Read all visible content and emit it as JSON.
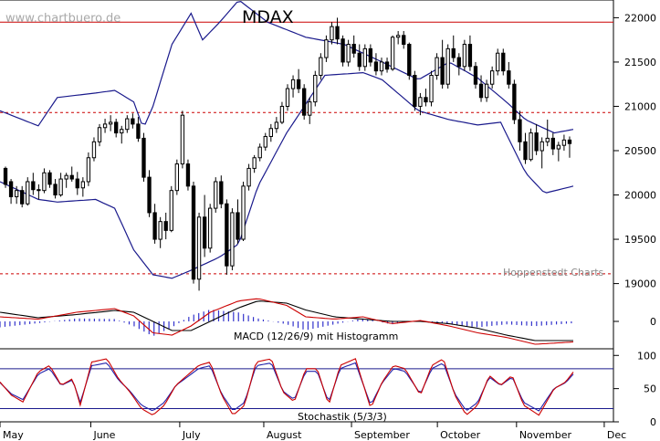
{
  "chart_data": {
    "type": "candlestick",
    "title": "MDAX",
    "watermark": "www.chartbuero.de",
    "source": "Hoppenstedt Charts",
    "price_panel": {
      "ylim": [
        18800,
        22200
      ],
      "yticks": [
        19000,
        19500,
        20000,
        20500,
        21000,
        21500,
        22000
      ],
      "reference_lines": [
        {
          "value": 21950,
          "style": "solid",
          "color": "#cc0000"
        },
        {
          "value": 20930,
          "style": "dashed",
          "color": "#cc0000"
        },
        {
          "value": 19110,
          "style": "dashed",
          "color": "#cc0000"
        }
      ],
      "bollinger_upper_anchors": [
        [
          0,
          20950
        ],
        [
          20,
          20780
        ],
        [
          30,
          21100
        ],
        [
          50,
          21150
        ],
        [
          60,
          21180
        ],
        [
          70,
          21050
        ],
        [
          75,
          20750
        ],
        [
          80,
          21000
        ],
        [
          90,
          21700
        ],
        [
          100,
          22050
        ],
        [
          106,
          21750
        ],
        [
          115,
          21950
        ],
        [
          125,
          22200
        ],
        [
          140,
          21950
        ],
        [
          160,
          21780
        ],
        [
          180,
          21700
        ],
        [
          200,
          21500
        ],
        [
          219,
          21300
        ],
        [
          235,
          21500
        ],
        [
          250,
          21320
        ],
        [
          265,
          21050
        ],
        [
          275,
          20850
        ],
        [
          290,
          20700
        ],
        [
          300,
          20740
        ]
      ],
      "bollinger_lower_anchors": [
        [
          0,
          20150
        ],
        [
          20,
          19950
        ],
        [
          30,
          19920
        ],
        [
          50,
          19950
        ],
        [
          60,
          19850
        ],
        [
          70,
          19380
        ],
        [
          80,
          19100
        ],
        [
          90,
          19060
        ],
        [
          100,
          19150
        ],
        [
          115,
          19300
        ],
        [
          125,
          19450
        ],
        [
          135,
          20100
        ],
        [
          150,
          20700
        ],
        [
          170,
          21350
        ],
        [
          190,
          21380
        ],
        [
          200,
          21300
        ],
        [
          219,
          20950
        ],
        [
          235,
          20850
        ],
        [
          250,
          20790
        ],
        [
          262,
          20820
        ],
        [
          275,
          20250
        ],
        [
          285,
          20020
        ],
        [
          300,
          20100
        ]
      ],
      "candles_summary": {
        "start_date": "May",
        "end_date": "November",
        "approx_range": [
          18900,
          22000
        ]
      },
      "ohlc": [
        [
          20300,
          20320,
          20080,
          20120
        ],
        [
          20150,
          20180,
          19900,
          19980
        ],
        [
          19980,
          20100,
          19900,
          20050
        ],
        [
          20050,
          20100,
          19860,
          19900
        ],
        [
          19900,
          20200,
          19880,
          20150
        ],
        [
          20150,
          20250,
          20000,
          20060
        ],
        [
          20060,
          20120,
          19950,
          20050
        ],
        [
          20050,
          20300,
          20020,
          20250
        ],
        [
          20250,
          20280,
          20080,
          20120
        ],
        [
          20120,
          20180,
          19960,
          20000
        ],
        [
          20000,
          20250,
          19980,
          20180
        ],
        [
          20180,
          20250,
          20080,
          20220
        ],
        [
          20220,
          20320,
          20150,
          20180
        ],
        [
          20180,
          20260,
          20000,
          20080
        ],
        [
          20080,
          20200,
          19980,
          20150
        ],
        [
          20150,
          20480,
          20100,
          20420
        ],
        [
          20420,
          20650,
          20380,
          20600
        ],
        [
          20600,
          20800,
          20550,
          20760
        ],
        [
          20760,
          20860,
          20700,
          20800
        ],
        [
          20800,
          20900,
          20720,
          20820
        ],
        [
          20820,
          20860,
          20650,
          20700
        ],
        [
          20700,
          20780,
          20580,
          20740
        ],
        [
          20740,
          20900,
          20700,
          20860
        ],
        [
          20860,
          20920,
          20750,
          20800
        ],
        [
          20800,
          20880,
          20600,
          20640
        ],
        [
          20640,
          20700,
          20150,
          20200
        ],
        [
          20200,
          20280,
          19750,
          19800
        ],
        [
          19800,
          19900,
          19450,
          19500
        ],
        [
          19500,
          19750,
          19400,
          19700
        ],
        [
          19700,
          19800,
          19500,
          19600
        ],
        [
          19600,
          20100,
          19580,
          20050
        ],
        [
          20050,
          20400,
          20000,
          20350
        ],
        [
          20350,
          20950,
          20300,
          20900
        ],
        [
          20350,
          20400,
          20050,
          20100
        ],
        [
          20100,
          20150,
          19000,
          19050
        ],
        [
          19050,
          19800,
          18920,
          19750
        ],
        [
          19750,
          20000,
          19300,
          19400
        ],
        [
          19400,
          19900,
          19350,
          19850
        ],
        [
          19850,
          20200,
          19800,
          20150
        ],
        [
          20150,
          20220,
          19850,
          19900
        ],
        [
          19900,
          19950,
          19100,
          19200
        ],
        [
          19200,
          19850,
          19150,
          19800
        ],
        [
          19800,
          19950,
          19450,
          19500
        ],
        [
          19500,
          20150,
          19480,
          20100
        ],
        [
          20100,
          20350,
          20050,
          20300
        ],
        [
          20300,
          20450,
          20250,
          20420
        ],
        [
          20420,
          20580,
          20380,
          20540
        ],
        [
          20540,
          20700,
          20500,
          20660
        ],
        [
          20660,
          20800,
          20600,
          20750
        ],
        [
          20750,
          20880,
          20700,
          20820
        ],
        [
          20820,
          21050,
          20800,
          21000
        ],
        [
          21000,
          21250,
          20950,
          21200
        ],
        [
          21200,
          21350,
          21100,
          21300
        ],
        [
          21300,
          21420,
          21150,
          21200
        ],
        [
          21200,
          21250,
          20850,
          20900
        ],
        [
          20900,
          21100,
          20800,
          21050
        ],
        [
          21050,
          21400,
          21000,
          21350
        ],
        [
          21350,
          21600,
          21300,
          21550
        ],
        [
          21550,
          21800,
          21500,
          21750
        ],
        [
          21750,
          21950,
          21700,
          21900
        ],
        [
          21900,
          22000,
          21700,
          21760
        ],
        [
          21760,
          21800,
          21450,
          21500
        ],
        [
          21500,
          21750,
          21450,
          21700
        ],
        [
          21700,
          21800,
          21550,
          21600
        ],
        [
          21600,
          21700,
          21400,
          21450
        ],
        [
          21450,
          21700,
          21400,
          21650
        ],
        [
          21650,
          21700,
          21450,
          21500
        ],
        [
          21500,
          21600,
          21350,
          21400
        ],
        [
          21400,
          21550,
          21350,
          21500
        ],
        [
          21500,
          21550,
          21380,
          21420
        ],
        [
          21420,
          21800,
          21400,
          21780
        ],
        [
          21780,
          21850,
          21700,
          21800
        ],
        [
          21800,
          21850,
          21650,
          21700
        ],
        [
          21700,
          21720,
          21300,
          21350
        ],
        [
          21350,
          21400,
          20950,
          21000
        ],
        [
          21000,
          21150,
          20900,
          21100
        ],
        [
          21100,
          21200,
          21000,
          21050
        ],
        [
          21050,
          21400,
          21000,
          21350
        ],
        [
          21350,
          21600,
          21300,
          21550
        ],
        [
          21550,
          21750,
          21200,
          21250
        ],
        [
          21250,
          21700,
          21200,
          21650
        ],
        [
          21650,
          21800,
          21500,
          21550
        ],
        [
          21550,
          21600,
          21350,
          21450
        ],
        [
          21450,
          21750,
          21400,
          21700
        ],
        [
          21700,
          21800,
          21400,
          21450
        ],
        [
          21450,
          21500,
          21200,
          21250
        ],
        [
          21250,
          21350,
          21050,
          21100
        ],
        [
          21100,
          21300,
          21050,
          21250
        ],
        [
          21250,
          21450,
          21200,
          21400
        ],
        [
          21400,
          21650,
          21350,
          21600
        ],
        [
          21600,
          21650,
          21350,
          21400
        ],
        [
          21400,
          21500,
          21200,
          21250
        ],
        [
          21250,
          21300,
          20800,
          20850
        ],
        [
          20850,
          20950,
          20500,
          20600
        ],
        [
          20600,
          20700,
          20350,
          20400
        ],
        [
          20400,
          20750,
          20380,
          20700
        ],
        [
          20700,
          20800,
          20450,
          20500
        ],
        [
          20500,
          20650,
          20300,
          20600
        ],
        [
          20600,
          20850,
          20550,
          20640
        ],
        [
          20640,
          20700,
          20450,
          20520
        ],
        [
          20520,
          20600,
          20380,
          20560
        ],
        [
          20560,
          20680,
          20500,
          20620
        ],
        [
          20620,
          20660,
          20420,
          20580
        ]
      ]
    },
    "macd_panel": {
      "label": "MACD (12/26/9) mit Histogramm",
      "ylim": [
        -0.6,
        0.6
      ],
      "yticks": [
        0
      ],
      "macd_anchors": [
        [
          0,
          0.1
        ],
        [
          20,
          0.05
        ],
        [
          40,
          0.2
        ],
        [
          60,
          0.28
        ],
        [
          70,
          0.12
        ],
        [
          80,
          -0.25
        ],
        [
          90,
          -0.3
        ],
        [
          100,
          -0.1
        ],
        [
          110,
          0.2
        ],
        [
          125,
          0.45
        ],
        [
          135,
          0.5
        ],
        [
          150,
          0.35
        ],
        [
          160,
          0.1
        ],
        [
          175,
          0.05
        ],
        [
          190,
          0.1
        ],
        [
          205,
          -0.05
        ],
        [
          220,
          0.02
        ],
        [
          235,
          -0.1
        ],
        [
          250,
          -0.25
        ],
        [
          265,
          -0.35
        ],
        [
          280,
          -0.5
        ],
        [
          300,
          -0.45
        ]
      ],
      "signal_anchors": [
        [
          0,
          0.2
        ],
        [
          20,
          0.08
        ],
        [
          40,
          0.15
        ],
        [
          60,
          0.24
        ],
        [
          70,
          0.2
        ],
        [
          80,
          0.0
        ],
        [
          90,
          -0.2
        ],
        [
          100,
          -0.2
        ],
        [
          110,
          0.0
        ],
        [
          125,
          0.3
        ],
        [
          135,
          0.45
        ],
        [
          150,
          0.4
        ],
        [
          160,
          0.25
        ],
        [
          175,
          0.1
        ],
        [
          190,
          0.05
        ],
        [
          205,
          0.0
        ],
        [
          220,
          0.0
        ],
        [
          235,
          -0.05
        ],
        [
          250,
          -0.15
        ],
        [
          265,
          -0.3
        ],
        [
          280,
          -0.42
        ],
        [
          300,
          -0.42
        ]
      ],
      "macd_color": "#cc0000",
      "signal_color": "#000000",
      "histogram_color": "#3333cc"
    },
    "stochastic_panel": {
      "label": "Stochastik (5/3/3)",
      "ylim": [
        0,
        110
      ],
      "yticks": [
        0,
        50,
        100
      ],
      "reference_lines": [
        80,
        20
      ],
      "k_color": "#cc0000",
      "d_color": "#2222aa"
    },
    "x_axis": {
      "months": [
        "May",
        "June",
        "July",
        "August",
        "September",
        "October",
        "November",
        "Dec"
      ]
    }
  }
}
